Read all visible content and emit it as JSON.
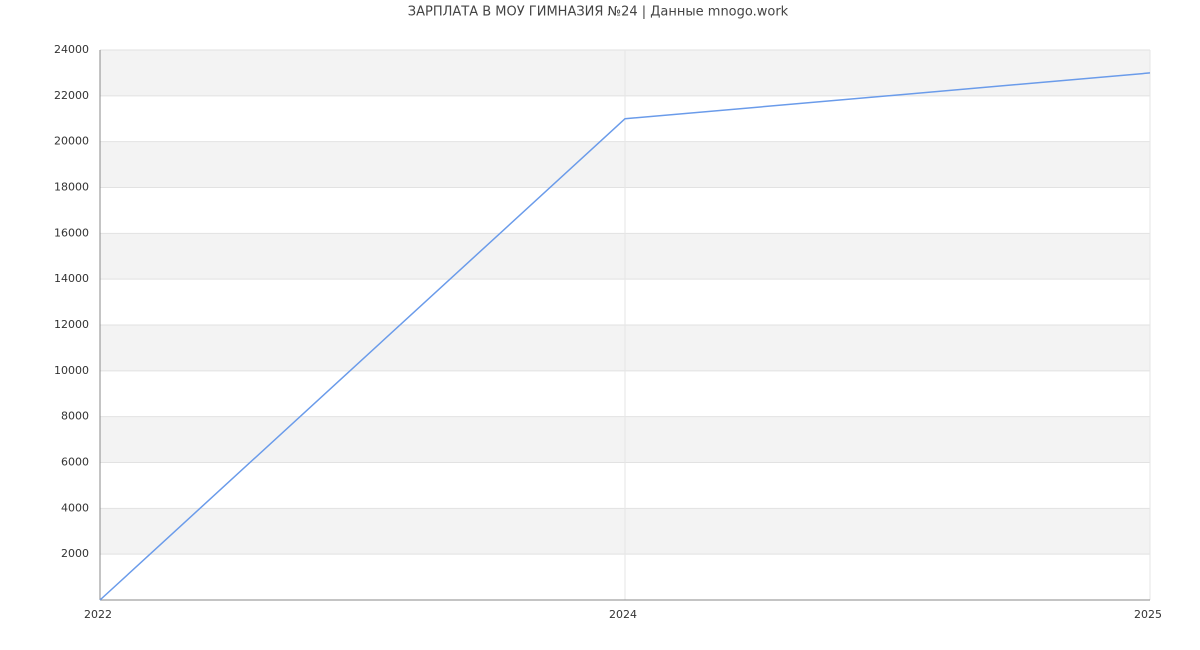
{
  "chart_data": {
    "type": "line",
    "title": "ЗАРПЛАТА В МОУ ГИМНАЗИЯ №24 | Данные mnogo.work",
    "categories": [
      "2022",
      "2024",
      "2025"
    ],
    "values": [
      0,
      21000,
      23000
    ],
    "color": "#6a9bea",
    "ylim": [
      0,
      24000
    ],
    "yticks": [
      2000,
      4000,
      6000,
      8000,
      10000,
      12000,
      14000,
      16000,
      18000,
      20000,
      22000,
      24000
    ],
    "grid": true
  }
}
